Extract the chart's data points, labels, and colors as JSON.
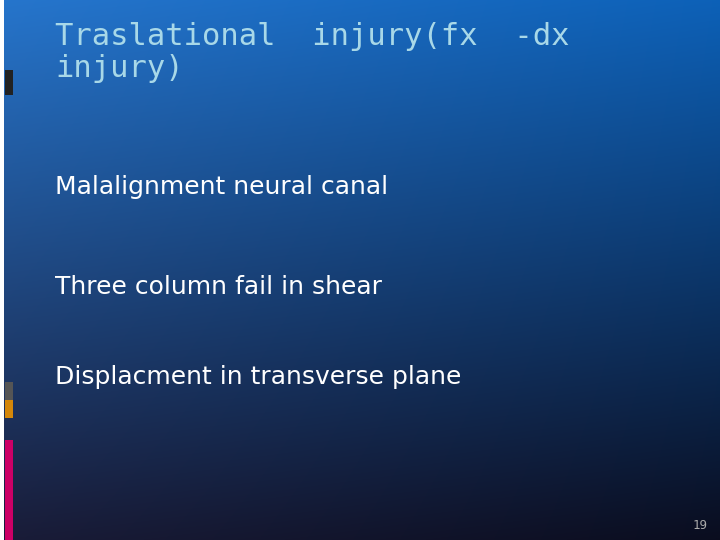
{
  "title_line1": "Traslational  injury(fx  -dx",
  "title_line2": "injury)",
  "bullet1": "Malalignment neural canal",
  "bullet2": "Three column fail in shear",
  "bullet3": "Displacment in transverse plane",
  "page_number": "19",
  "title_font_size": 22,
  "bullet_font_size": 18,
  "page_num_font_size": 9,
  "title_color": "#A8D8E8",
  "bullet_color": "#FFFFFF",
  "page_num_color": "#AAAAAA",
  "left_border_color": "#FFFFFF",
  "left_bar_black_color": "#222222",
  "left_bar_gray_color": "#555555",
  "left_bar_orange_color": "#D4870A",
  "left_bar_pink_color": "#CC0066"
}
